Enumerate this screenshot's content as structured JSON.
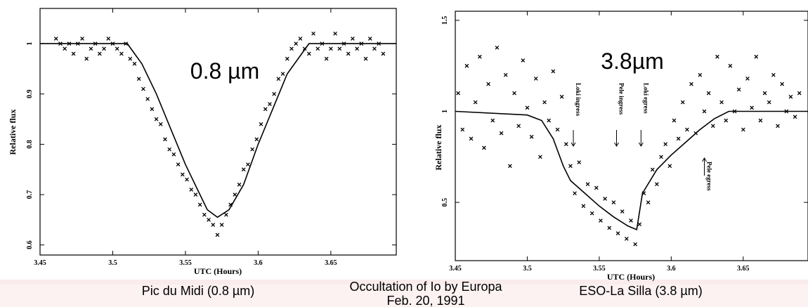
{
  "colors": {
    "background": "#ffffff",
    "ink": "#000000",
    "caption_band": "#f6dcdc"
  },
  "captions": {
    "left": "Pic du Midi (0.8 µm)",
    "center_line1": "Occultation of Io by Europa",
    "center_line2": "Feb. 20, 1991",
    "right": "ESO-La Silla (3.8 µm)"
  },
  "chart_data": [
    {
      "type": "scatter",
      "title": "0.8 µm",
      "xlabel": "UTC (Hours)",
      "ylabel": "Relative flux",
      "xlim": [
        3.45,
        3.695
      ],
      "ylim": [
        0.58,
        1.07
      ],
      "xticks": [
        3.45,
        3.5,
        3.55,
        3.6,
        3.65
      ],
      "xtick_labels": [
        "3.45",
        "3.5",
        "3.55",
        "3.6",
        "3.65"
      ],
      "yticks": [
        0.6,
        0.7,
        0.8,
        0.9,
        1.0
      ],
      "ytick_labels": [
        "0.6",
        "0.7",
        "0.8",
        "0.9",
        "1"
      ],
      "grid": false,
      "series": [
        {
          "kind": "points",
          "marker": "x",
          "x": [
            3.461,
            3.464,
            3.467,
            3.47,
            3.473,
            3.476,
            3.479,
            3.482,
            3.485,
            3.488,
            3.491,
            3.494,
            3.497,
            3.5,
            3.503,
            3.506,
            3.509,
            3.512,
            3.515,
            3.518,
            3.521,
            3.524,
            3.527,
            3.53,
            3.533,
            3.536,
            3.539,
            3.542,
            3.545,
            3.548,
            3.551,
            3.554,
            3.557,
            3.56,
            3.563,
            3.566,
            3.569,
            3.572,
            3.575,
            3.578,
            3.581,
            3.584,
            3.587,
            3.59,
            3.593,
            3.596,
            3.599,
            3.602,
            3.605,
            3.608,
            3.611,
            3.614,
            3.617,
            3.62,
            3.623,
            3.626,
            3.629,
            3.632,
            3.635,
            3.638,
            3.641,
            3.644,
            3.647,
            3.65,
            3.653,
            3.656,
            3.659,
            3.662,
            3.665,
            3.668,
            3.671,
            3.674,
            3.677,
            3.68,
            3.683,
            3.686
          ],
          "y": [
            1.01,
            1.0,
            0.99,
            1.0,
            0.98,
            1.0,
            1.01,
            0.97,
            0.99,
            1.0,
            0.98,
            0.99,
            1.01,
            1.0,
            0.99,
            0.98,
            1.0,
            0.97,
            0.96,
            0.93,
            0.91,
            0.89,
            0.87,
            0.85,
            0.84,
            0.81,
            0.79,
            0.78,
            0.76,
            0.74,
            0.73,
            0.71,
            0.7,
            0.68,
            0.66,
            0.65,
            0.64,
            0.62,
            0.64,
            0.66,
            0.68,
            0.7,
            0.72,
            0.75,
            0.76,
            0.79,
            0.81,
            0.84,
            0.87,
            0.88,
            0.9,
            0.93,
            0.94,
            0.97,
            0.99,
            1.0,
            1.01,
            0.99,
            0.98,
            1.02,
            0.99,
            1.0,
            0.97,
            0.99,
            1.02,
            0.99,
            1.0,
            0.98,
            1.01,
            0.99,
            1.0,
            0.97,
            1.01,
            0.99,
            1.0,
            0.98
          ]
        },
        {
          "kind": "line",
          "x": [
            3.45,
            3.51,
            3.52,
            3.53,
            3.54,
            3.55,
            3.56,
            3.565,
            3.572,
            3.58,
            3.59,
            3.6,
            3.61,
            3.62,
            3.635,
            3.695
          ],
          "y": [
            1.0,
            1.0,
            0.96,
            0.9,
            0.83,
            0.76,
            0.7,
            0.67,
            0.655,
            0.67,
            0.72,
            0.8,
            0.87,
            0.94,
            1.0,
            1.0
          ]
        }
      ]
    },
    {
      "type": "scatter",
      "title": "3.8µm",
      "xlabel": "UTC (Hours)",
      "ylabel": "Relative flux",
      "xlim": [
        3.45,
        3.695
      ],
      "ylim": [
        0.18,
        1.55
      ],
      "xticks": [
        3.45,
        3.5,
        3.55,
        3.6,
        3.65
      ],
      "xtick_labels": [
        "3.45",
        "3.5",
        "3.55",
        "3.6",
        "3.65"
      ],
      "yticks": [
        0.5,
        1.0,
        1.5
      ],
      "ytick_labels": [
        "0.5",
        "1",
        "1.5"
      ],
      "grid": false,
      "annotations": [
        {
          "text": "Loki ingress",
          "x": 3.532
        },
        {
          "text": "Pele ingress",
          "x": 3.562
        },
        {
          "text": "Loki egress",
          "x": 3.579
        },
        {
          "text": "Pele egress",
          "x": 3.623
        }
      ],
      "series": [
        {
          "kind": "points",
          "marker": "x",
          "x": [
            3.452,
            3.455,
            3.458,
            3.461,
            3.464,
            3.467,
            3.47,
            3.473,
            3.476,
            3.479,
            3.482,
            3.485,
            3.488,
            3.491,
            3.494,
            3.497,
            3.5,
            3.503,
            3.506,
            3.509,
            3.512,
            3.515,
            3.518,
            3.521,
            3.524,
            3.527,
            3.53,
            3.533,
            3.536,
            3.539,
            3.542,
            3.545,
            3.548,
            3.551,
            3.554,
            3.557,
            3.56,
            3.563,
            3.566,
            3.569,
            3.572,
            3.575,
            3.578,
            3.581,
            3.584,
            3.587,
            3.59,
            3.593,
            3.596,
            3.599,
            3.602,
            3.605,
            3.608,
            3.611,
            3.614,
            3.617,
            3.62,
            3.623,
            3.626,
            3.629,
            3.632,
            3.635,
            3.638,
            3.641,
            3.644,
            3.647,
            3.65,
            3.653,
            3.656,
            3.659,
            3.662,
            3.665,
            3.668,
            3.671,
            3.674,
            3.677,
            3.68,
            3.683,
            3.686,
            3.689
          ],
          "y": [
            1.1,
            0.9,
            1.25,
            0.85,
            1.05,
            1.3,
            0.8,
            1.15,
            0.95,
            1.35,
            0.88,
            1.2,
            0.7,
            1.1,
            0.92,
            1.28,
            1.02,
            0.86,
            1.18,
            0.75,
            1.05,
            0.95,
            1.22,
            0.9,
            1.08,
            0.82,
            0.7,
            0.55,
            0.72,
            0.48,
            0.6,
            0.44,
            0.58,
            0.4,
            0.52,
            0.36,
            0.5,
            0.33,
            0.45,
            0.3,
            0.4,
            0.27,
            0.38,
            0.55,
            0.5,
            0.68,
            0.6,
            0.75,
            0.82,
            0.7,
            0.95,
            0.85,
            1.05,
            0.9,
            1.15,
            0.88,
            1.2,
            1.0,
            1.1,
            0.92,
            1.3,
            1.05,
            0.95,
            1.25,
            1.0,
            1.12,
            0.9,
            1.18,
            1.02,
            1.3,
            0.95,
            1.1,
            1.05,
            1.2,
            0.92,
            1.15,
            1.0,
            1.08,
            0.97,
            1.1
          ]
        },
        {
          "kind": "line",
          "x": [
            3.45,
            3.5,
            3.51,
            3.518,
            3.525,
            3.53,
            3.54,
            3.55,
            3.56,
            3.57,
            3.576,
            3.58,
            3.59,
            3.6,
            3.61,
            3.62,
            3.63,
            3.64,
            3.695
          ],
          "y": [
            1.0,
            0.98,
            0.95,
            0.85,
            0.7,
            0.62,
            0.55,
            0.48,
            0.42,
            0.37,
            0.35,
            0.55,
            0.68,
            0.76,
            0.83,
            0.9,
            0.96,
            1.0,
            1.0
          ]
        }
      ]
    }
  ]
}
